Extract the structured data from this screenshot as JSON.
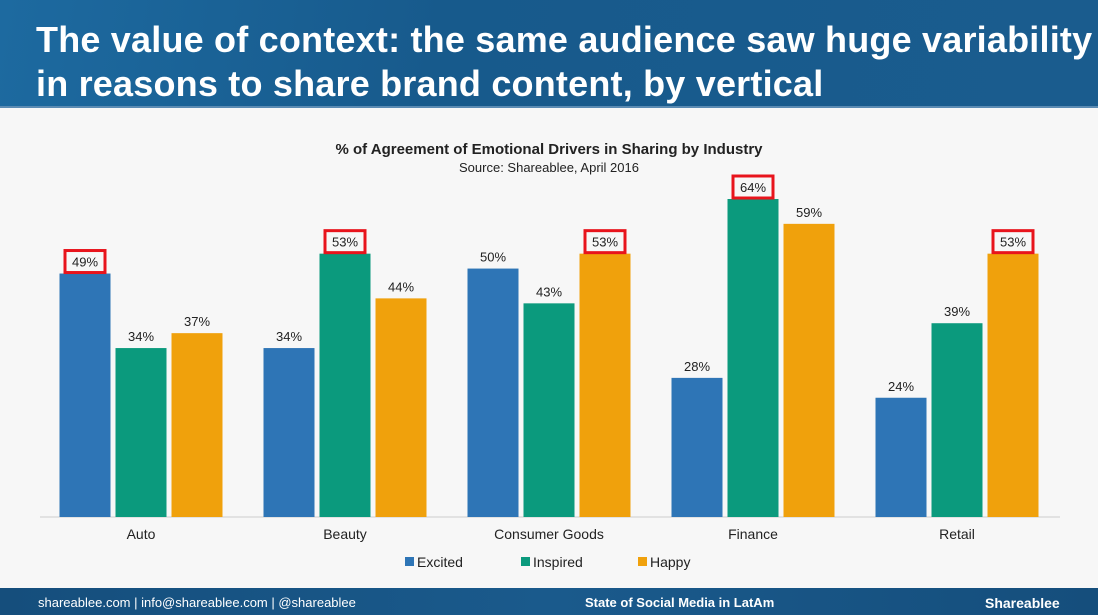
{
  "header": {
    "title": "The value of context: the same audience saw huge variability in reasons to share brand content, by vertical"
  },
  "footer": {
    "contacts": "shareablee.com | info@shareablee.com | @shareablee",
    "center": "State of Social Media in LatAm",
    "logo": "Shareablee"
  },
  "chart_data": {
    "type": "bar",
    "title": "% of Agreement of Emotional Drivers in Sharing by Industry",
    "subtitle": "Source: Shareablee, April 2016",
    "categories": [
      "Auto",
      "Beauty",
      "Consumer Goods",
      "Finance",
      "Retail"
    ],
    "series": [
      {
        "name": "Excited",
        "color": "#2e75b6",
        "values": [
          49,
          34,
          50,
          28,
          24
        ]
      },
      {
        "name": "Inspired",
        "color": "#0b9a7d",
        "values": [
          34,
          53,
          43,
          64,
          39
        ]
      },
      {
        "name": "Happy",
        "color": "#f0a10c",
        "values": [
          37,
          44,
          53,
          59,
          53
        ]
      }
    ],
    "highlighted": [
      [
        0,
        0
      ],
      [
        1,
        1
      ],
      [
        2,
        2
      ],
      [
        3,
        1
      ],
      [
        4,
        2
      ]
    ],
    "highlight_color": "#e8141c",
    "ylim": [
      0,
      64
    ],
    "legend": "bottom"
  }
}
